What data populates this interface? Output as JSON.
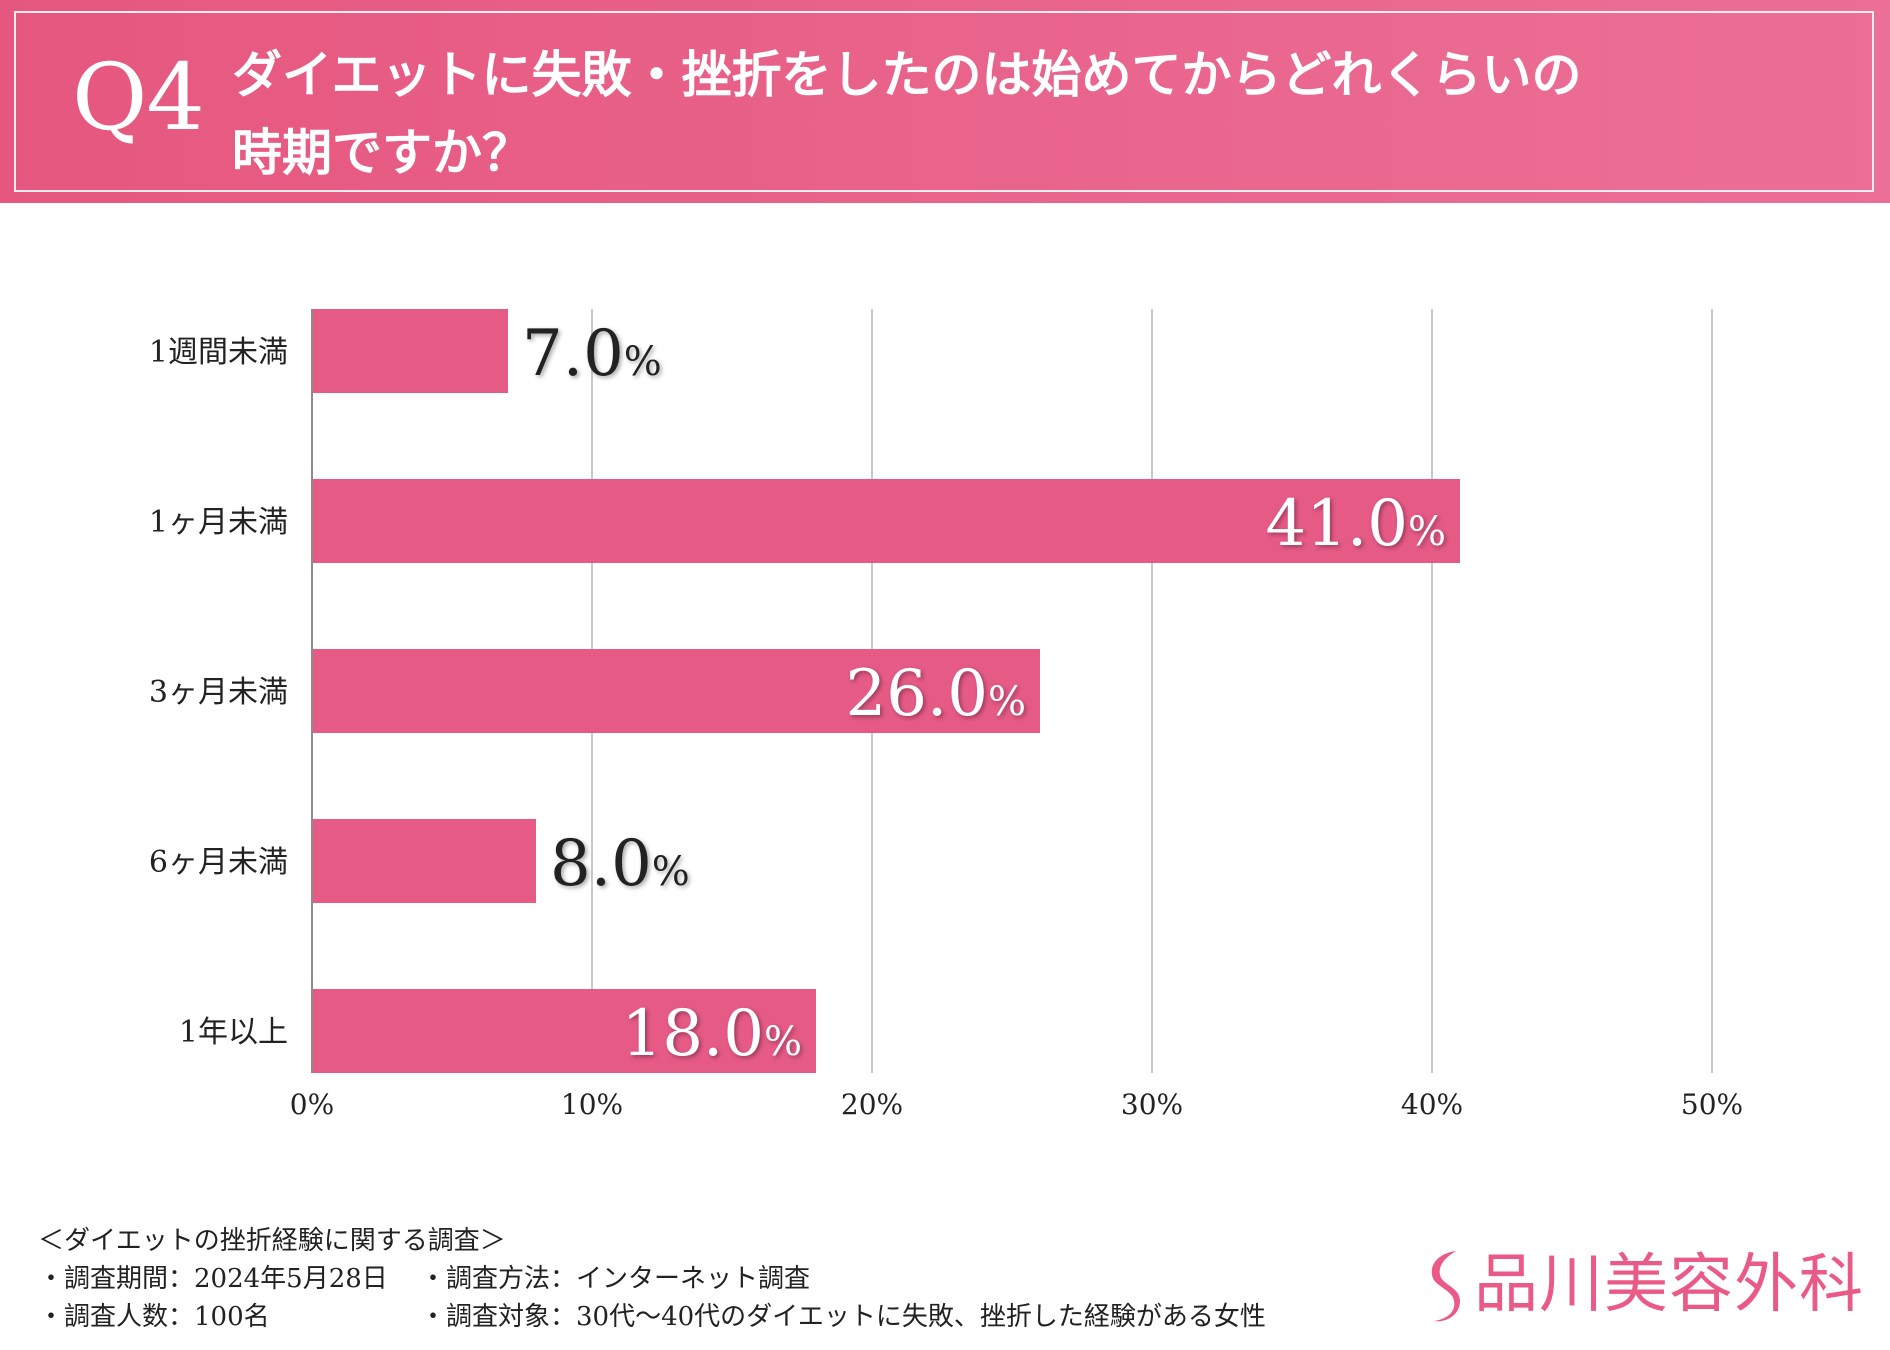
{
  "header": {
    "q_number": "Q4",
    "title_line1": "ダイエットに失敗・挫折をしたのは始めてからどれくらいの",
    "title_line2": "時期ですか？"
  },
  "chart_data": {
    "type": "bar",
    "orientation": "horizontal",
    "categories": [
      "1週間未満",
      "1ヶ月未満",
      "3ヶ月未満",
      "6ヶ月未満",
      "1年以上"
    ],
    "values": [
      7.0,
      41.0,
      26.0,
      8.0,
      18.0
    ],
    "value_labels": [
      "7.0",
      "41.0",
      "26.0",
      "8.0",
      "18.0"
    ],
    "unit": "%",
    "xlim": [
      0,
      50
    ],
    "xticks": [
      0,
      10,
      20,
      30,
      40,
      50
    ],
    "xtick_labels": [
      "0%",
      "10%",
      "20%",
      "30%",
      "40%",
      "50%"
    ],
    "grid": true,
    "title": "ダイエットに失敗・挫折をしたのは始めてからどれくらいの時期ですか？",
    "xlabel": "",
    "ylabel": ""
  },
  "footer": {
    "survey_title": "＜ダイエットの挫折経験に関する調査＞",
    "period": "・調査期間：2024年5月28日",
    "method": "・調査方法：インターネット調査",
    "respondents": "・調査人数：100名",
    "target": "・調査対象：30代〜40代のダイエットに失敗、挫折した経験がある女性"
  },
  "brand": {
    "name": "品川美容外科",
    "logo_icon": "s-swoosh-logo-icon"
  },
  "colors": {
    "header_bg": "#e6577f",
    "bar": "#e65a86",
    "grid": "#c8c8c8",
    "axis": "#8c8c8c",
    "brand": "#ea5a86",
    "label_dark": "#222222",
    "label_light": "#ffffff"
  }
}
